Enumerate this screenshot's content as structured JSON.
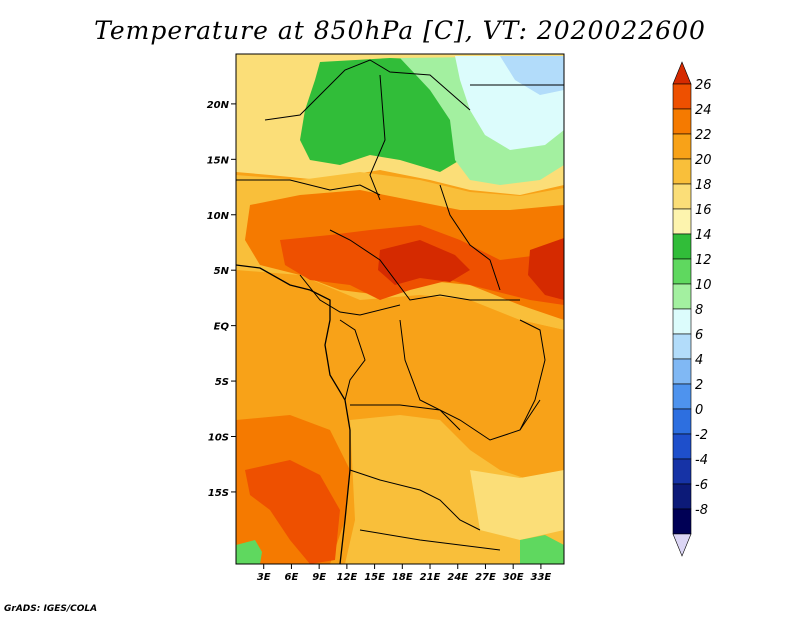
{
  "title": "Temperature at 850hPa [C], VT: 2020022600",
  "credit": "GrADS: IGES/COLA",
  "map": {
    "region": "Central Africa",
    "lat_range": [
      -21.5,
      24.5
    ],
    "lon_range": [
      0,
      35.5
    ],
    "lat_ticks": [
      {
        "lat": 20,
        "label": "20N"
      },
      {
        "lat": 15,
        "label": "15N"
      },
      {
        "lat": 10,
        "label": "10N"
      },
      {
        "lat": 5,
        "label": "5N"
      },
      {
        "lat": 0,
        "label": "EQ"
      },
      {
        "lat": -5,
        "label": "5S"
      },
      {
        "lat": -10,
        "label": "10S"
      },
      {
        "lat": -15,
        "label": "15S"
      }
    ],
    "lon_ticks": [
      {
        "lon": 3,
        "label": "3E"
      },
      {
        "lon": 6,
        "label": "6E"
      },
      {
        "lon": 9,
        "label": "9E"
      },
      {
        "lon": 12,
        "label": "12E"
      },
      {
        "lon": 15,
        "label": "15E"
      },
      {
        "lon": 18,
        "label": "18E"
      },
      {
        "lon": 21,
        "label": "21E"
      },
      {
        "lon": 24,
        "label": "24E"
      },
      {
        "lon": 27,
        "label": "27E"
      },
      {
        "lon": 30,
        "label": "30E"
      },
      {
        "lon": 33,
        "label": "33E"
      }
    ]
  },
  "colorbar": {
    "levels": [
      "26",
      "24",
      "22",
      "20",
      "18",
      "16",
      "14",
      "12",
      "10",
      "8",
      "6",
      "4",
      "2",
      "0",
      "-2",
      "-4",
      "-6",
      "-8"
    ],
    "colors": [
      "#d52a00",
      "#ee5000",
      "#f57a00",
      "#f8a218",
      "#f9bf3a",
      "#fbde78",
      "#fdf4ae",
      "#31bd39",
      "#5fd85f",
      "#a3f0a0",
      "#dcfcfc",
      "#b2dcfa",
      "#80b8f4",
      "#4e93ee",
      "#2d6fe0",
      "#1e4fcb",
      "#1633a6",
      "#0c1a78",
      "#000055",
      "#dcd6f5"
    ]
  },
  "temperature_regions": [
    {
      "name": "n-yellow",
      "value": "16-18",
      "color": "#fbde78"
    },
    {
      "name": "north-green",
      "value": "10-14",
      "color": "#31bd39"
    },
    {
      "name": "ne-lightgreen",
      "value": "8-10",
      "color": "#a3f0a0"
    },
    {
      "name": "ne-cyan",
      "value": "6-8",
      "color": "#dcfcfc"
    },
    {
      "name": "ne-blue",
      "value": "4-6",
      "color": "#b2dcfa"
    },
    {
      "name": "sahel-band",
      "value": "20-22",
      "color": "#f57a00"
    },
    {
      "name": "hot-core",
      "value": "22-24",
      "color": "#ee5000"
    },
    {
      "name": "hot-east",
      "value": "24-26",
      "color": "#d52a00"
    },
    {
      "name": "congo-basin",
      "value": "18-20",
      "color": "#f9bf3a"
    },
    {
      "name": "south-plume",
      "value": "20-22",
      "color": "#f57a00"
    },
    {
      "name": "sw-green",
      "value": "10-14",
      "color": "#5fd85f"
    }
  ]
}
